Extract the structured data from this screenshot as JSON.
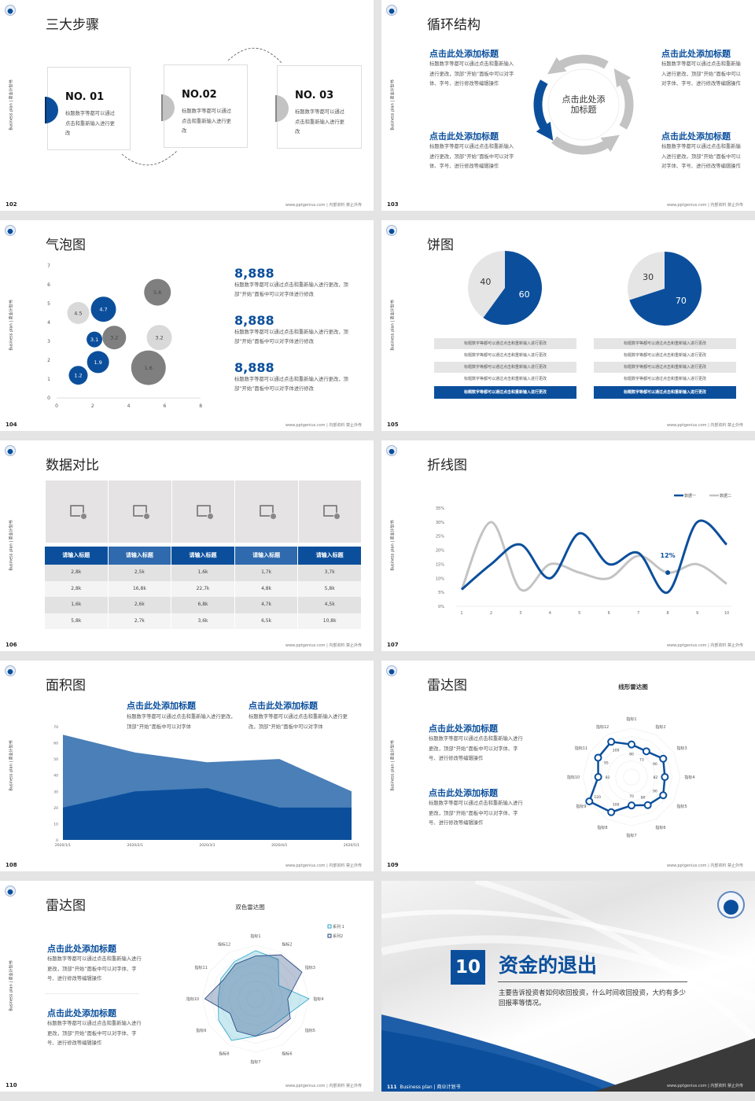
{
  "common": {
    "side_label": "Business plan | 商业计划书",
    "footer": "www.pptgenius.com | 内部资料 禁止外传",
    "colors": {
      "blue": "#0b4f9c",
      "mid_blue": "#4a7fb8",
      "gray": "#c3c3c3",
      "dark_gray": "#808080",
      "light_gray": "#e5e5e5"
    }
  },
  "s102": {
    "page": "102",
    "title": "三大步骤",
    "steps": [
      {
        "no": "NO. 01",
        "text": "标题数字等都可以通过点击和重新输入进行更改"
      },
      {
        "no": "NO.02",
        "text": "标题数字等都可以通过点击和重新输入进行更改"
      },
      {
        "no": "NO. 03",
        "text": "标题数字等都可以通过点击和重新输入进行更改"
      }
    ]
  },
  "s103": {
    "page": "103",
    "title": "循环结构",
    "center": "点击此处添加标题",
    "blocks": [
      {
        "heading": "点击此处添加标题",
        "text": "标题数字等都可以通过点击和重新输入进行更改，顶部“开始”面板中可以对字体、字号、进行修改等编辑操作"
      },
      {
        "heading": "点击此处添加标题",
        "text": "标题数字等都可以通过点击和重新输入进行更改，顶部“开始”面板中可以对字体、字号、进行修改等编辑操作"
      },
      {
        "heading": "点击此处添加标题",
        "text": "标题数字等都可以通过点击和重新输入进行更改，顶部“开始”面板中可以对字体、字号、进行修改等编辑操作"
      },
      {
        "heading": "点击此处添加标题",
        "text": "标题数字等都可以通过点击和重新输入进行更改，顶部“开始”面板中可以对字体、字号、进行修改等编辑操作"
      }
    ]
  },
  "s104": {
    "page": "104",
    "title": "气泡图",
    "stats": [
      {
        "value": "8,888",
        "text": "标题数字等都可以通过点击和重新输入进行更改，顶部“开始”面板中可以对字体进行修改"
      },
      {
        "value": "8,888",
        "text": "标题数字等都可以通过点击和重新输入进行更改，顶部“开始”面板中可以对字体进行修改"
      },
      {
        "value": "8,888",
        "text": "标题数字等都可以通过点击和重新输入进行更改，顶部“开始”面板中可以对字体进行修改"
      }
    ]
  },
  "s105": {
    "page": "105",
    "title": "饼图",
    "left_rows": [
      "标题数字等都可以通过点击和重新输入进行更改",
      "标题数字等都可以通过点击和重新输入进行更改",
      "标题数字等都可以通过点击和重新输入进行更改",
      "标题数字等都可以通过点击和重新输入进行更改",
      "标题数字等都可以通过点击和重新输入进行更改"
    ],
    "right_rows": [
      "标题数字等都可以通过点击和重新输入进行更改",
      "标题数字等都可以通过点击和重新输入进行更改",
      "标题数字等都可以通过点击和重新输入进行更改",
      "标题数字等都可以通过点击和重新输入进行更改",
      "标题数字等都可以通过点击和重新输入进行更改"
    ]
  },
  "s106": {
    "page": "106",
    "title": "数据对比",
    "headers": [
      "请输入标题",
      "请输入标题",
      "请输入标题",
      "请输入标题",
      "请输入标题"
    ],
    "rows": [
      [
        "2,8k",
        "2,5k",
        "1,6k",
        "1,7k",
        "3,7k"
      ],
      [
        "2,8k",
        "16,8k",
        "22,7k",
        "4,8k",
        "5,8k"
      ],
      [
        "1,6k",
        "2,6k",
        "6,8k",
        "4,7k",
        "4,5k"
      ],
      [
        "5,8k",
        "2,7k",
        "3,6k",
        "6,5k",
        "10,8k"
      ]
    ]
  },
  "s107": {
    "page": "107",
    "title": "折线图"
  },
  "s108": {
    "page": "108",
    "title": "面积图",
    "blocks": [
      {
        "heading": "点击此处添加标题",
        "text": "标题数字等都可以通过点击和重新输入进行更改，顶部“开始”面板中可以对字体"
      },
      {
        "heading": "点击此处添加标题",
        "text": "标题数字等都可以通过点击和重新输入进行更改，顶部“开始”面板中可以对字体"
      }
    ]
  },
  "s109": {
    "page": "109",
    "title": "雷达图",
    "blocks": [
      {
        "heading": "点击此处添加标题",
        "text": "标题数字等都可以通过点击和重新输入进行更改，顶部“开始”面板中可以对字体、字号、进行修改等编辑操作"
      },
      {
        "heading": "点击此处添加标题",
        "text": "标题数字等都可以通过点击和重新输入进行更改，顶部“开始”面板中可以对字体、字号、进行修改等编辑操作"
      }
    ]
  },
  "s110": {
    "page": "110",
    "title": "雷达图",
    "blocks": [
      {
        "heading": "点击此处添加标题",
        "text": "标题数字等都可以通过点击和重新输入进行更改，顶部“开始”面板中可以对字体、字号、进行修改等编辑操作"
      },
      {
        "heading": "点击此处添加标题",
        "text": "标题数字等都可以通过点击和重新输入进行更改，顶部“开始”面板中可以对字体、字号、进行修改等编辑操作"
      }
    ]
  },
  "s111": {
    "page": "111",
    "number": "10",
    "heading": "资金的退出",
    "text": "主要告诉投资者如何收回投资，什么时间收回投资，大约有多少回报率等情况。"
  },
  "chart_data": [
    {
      "type": "scatter",
      "subtype": "bubble",
      "xlim": [
        0,
        8
      ],
      "ylim": [
        0,
        7
      ],
      "xticks": [
        0,
        2,
        4,
        6,
        8
      ],
      "yticks": [
        0,
        1,
        2,
        3,
        4,
        5,
        6,
        7
      ],
      "points": [
        {
          "x": 1.2,
          "y": 1.2,
          "size": 12,
          "label": "1.2",
          "color": "#0b4f9c"
        },
        {
          "x": 2.3,
          "y": 1.9,
          "size": 14,
          "label": "1.9",
          "color": "#0b4f9c"
        },
        {
          "x": 2.1,
          "y": 3.1,
          "size": 10,
          "label": "3.1",
          "color": "#0b4f9c"
        },
        {
          "x": 2.6,
          "y": 4.7,
          "size": 16,
          "label": "4.7",
          "color": "#0b4f9c"
        },
        {
          "x": 1.2,
          "y": 4.5,
          "size": 14,
          "label": "4.5",
          "color": "#d9d9d9"
        },
        {
          "x": 3.2,
          "y": 3.2,
          "size": 15,
          "label": "3.2",
          "color": "#7f7f7f"
        },
        {
          "x": 5.6,
          "y": 5.6,
          "size": 17,
          "label": "5.6",
          "color": "#7f7f7f"
        },
        {
          "x": 5.7,
          "y": 3.2,
          "size": 16,
          "label": "3.2",
          "color": "#d9d9d9"
        },
        {
          "x": 5.1,
          "y": 1.6,
          "size": 22,
          "label": "1.6",
          "color": "#7f7f7f"
        }
      ]
    },
    {
      "type": "pie",
      "values": [
        60,
        40
      ],
      "labels": [
        "60",
        "40"
      ],
      "colors": [
        "#0b4f9c",
        "#e5e5e5"
      ]
    },
    {
      "type": "pie",
      "values": [
        70,
        30
      ],
      "labels": [
        "70",
        "30"
      ],
      "colors": [
        "#0b4f9c",
        "#e5e5e5"
      ]
    },
    {
      "type": "line",
      "x": [
        1,
        2,
        3,
        4,
        5,
        6,
        7,
        8,
        9,
        10
      ],
      "ylim": [
        0,
        35
      ],
      "yticks": [
        "0%",
        "5%",
        "10%",
        "15%",
        "20%",
        "25%",
        "30%",
        "35%"
      ],
      "legend": "top-right",
      "series": [
        {
          "name": "数据一",
          "color": "#0b4f9c",
          "values": [
            6,
            15,
            22,
            10,
            26,
            15,
            19,
            5,
            30,
            22
          ]
        },
        {
          "name": "数据二",
          "color": "#c3c3c3",
          "values": [
            6,
            30,
            6,
            15,
            12,
            10,
            18,
            12,
            15,
            8
          ]
        }
      ],
      "annotation": {
        "x": 8,
        "y": 12,
        "text": "12%"
      }
    },
    {
      "type": "area",
      "categories": [
        "2020/1/1",
        "2020/2/1",
        "2020/3/1",
        "2020/4/1",
        "2020/5/1"
      ],
      "ylim": [
        0,
        70
      ],
      "yticks": [
        0,
        10,
        20,
        30,
        40,
        50,
        60,
        70
      ],
      "series": [
        {
          "color": "#4a7fb8",
          "values": [
            65,
            54,
            48,
            50,
            30
          ]
        },
        {
          "color": "#0b4f9c",
          "values": [
            20,
            30,
            32,
            20,
            20
          ]
        }
      ]
    },
    {
      "type": "radar",
      "title": "线形雷达图",
      "axes": [
        "指标1",
        "指标2",
        "指标3",
        "指标4",
        "指标5",
        "指标6",
        "指标7",
        "指标8",
        "指标9",
        "指标10",
        "指标11",
        "指标12"
      ],
      "max": 120,
      "series": [
        {
          "color": "#0b4f9c",
          "values": [
            80,
            73,
            90,
            82,
            90,
            80,
            70,
            100,
            120,
            82,
            95,
            100
          ]
        }
      ]
    },
    {
      "type": "radar",
      "title": "双色雷达图",
      "axes": [
        "指标1",
        "指标2",
        "指标3",
        "指标4",
        "指标5",
        "指标6",
        "指标7",
        "指标8",
        "指标9",
        "指标10",
        "指标11",
        "指标12"
      ],
      "max": 100,
      "legend": "top-right",
      "series": [
        {
          "name": "系列 1",
          "color": "#2aa6c9",
          "values": [
            90,
            85,
            50,
            100,
            65,
            60,
            70,
            90,
            80,
            70,
            75,
            80
          ]
        },
        {
          "name": "系列2",
          "color": "#1b3f7a",
          "values": [
            80,
            95,
            100,
            60,
            75,
            70,
            70,
            70,
            55,
            95,
            70,
            75
          ]
        }
      ]
    }
  ]
}
